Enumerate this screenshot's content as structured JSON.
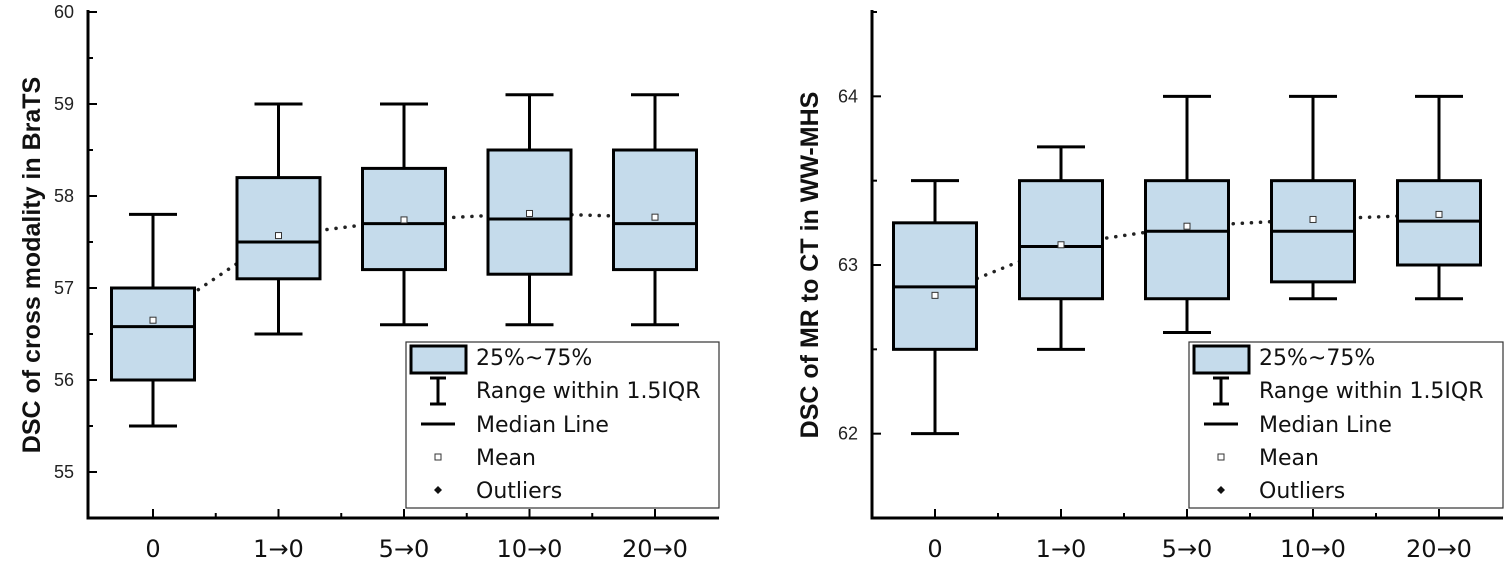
{
  "chart_data": [
    {
      "type": "box",
      "ylabel": "DSC of cross modality in BraTS",
      "xlabel": "",
      "categories": [
        "0",
        "1→0",
        "5→0",
        "10→0",
        "20→0"
      ],
      "ylim": [
        54.5,
        60
      ],
      "yticks": [
        55,
        56,
        57,
        58,
        59,
        60
      ],
      "boxes": [
        {
          "whisker_low": 55.5,
          "q1": 56.0,
          "median": 56.58,
          "q3": 57.0,
          "whisker_high": 57.8,
          "mean": 56.65
        },
        {
          "whisker_low": 56.5,
          "q1": 57.1,
          "median": 57.5,
          "q3": 58.2,
          "whisker_high": 59.0,
          "mean": 57.57
        },
        {
          "whisker_low": 56.6,
          "q1": 57.2,
          "median": 57.7,
          "q3": 58.3,
          "whisker_high": 59.0,
          "mean": 57.74
        },
        {
          "whisker_low": 56.6,
          "q1": 57.15,
          "median": 57.75,
          "q3": 58.5,
          "whisker_high": 59.1,
          "mean": 57.81
        },
        {
          "whisker_low": 56.6,
          "q1": 57.2,
          "median": 57.7,
          "q3": 58.5,
          "whisker_high": 59.1,
          "mean": 57.77
        }
      ],
      "legend": {
        "position": "bottom-right",
        "entries": [
          "25%~75%",
          "Range within 1.5IQR",
          "Median Line",
          "Mean",
          "Outliers"
        ]
      }
    },
    {
      "type": "box",
      "ylabel": "DSC of MR to CT in WW-MHS",
      "xlabel": "",
      "categories": [
        "0",
        "1→0",
        "5→0",
        "10→0",
        "20→0"
      ],
      "ylim": [
        61.5,
        64.5
      ],
      "yticks": [
        62,
        63,
        64
      ],
      "minor_yticks": [
        61.5,
        62.5,
        63.5,
        64.5
      ],
      "boxes": [
        {
          "whisker_low": 62.0,
          "q1": 62.5,
          "median": 62.87,
          "q3": 63.25,
          "whisker_high": 63.5,
          "mean": 62.82
        },
        {
          "whisker_low": 62.5,
          "q1": 62.8,
          "median": 63.11,
          "q3": 63.5,
          "whisker_high": 63.7,
          "mean": 63.12
        },
        {
          "whisker_low": 62.6,
          "q1": 62.8,
          "median": 63.2,
          "q3": 63.5,
          "whisker_high": 64.0,
          "mean": 63.23
        },
        {
          "whisker_low": 62.8,
          "q1": 62.9,
          "median": 63.2,
          "q3": 63.5,
          "whisker_high": 64.0,
          "mean": 63.27
        },
        {
          "whisker_low": 62.8,
          "q1": 63.0,
          "median": 63.26,
          "q3": 63.5,
          "whisker_high": 64.0,
          "mean": 63.3
        }
      ],
      "legend": {
        "position": "bottom-right",
        "entries": [
          "25%~75%",
          "Range within 1.5IQR",
          "Median Line",
          "Mean",
          "Outliers"
        ]
      }
    }
  ],
  "colors": {
    "box_fill": "#c5dbeb",
    "stroke": "#000000"
  }
}
